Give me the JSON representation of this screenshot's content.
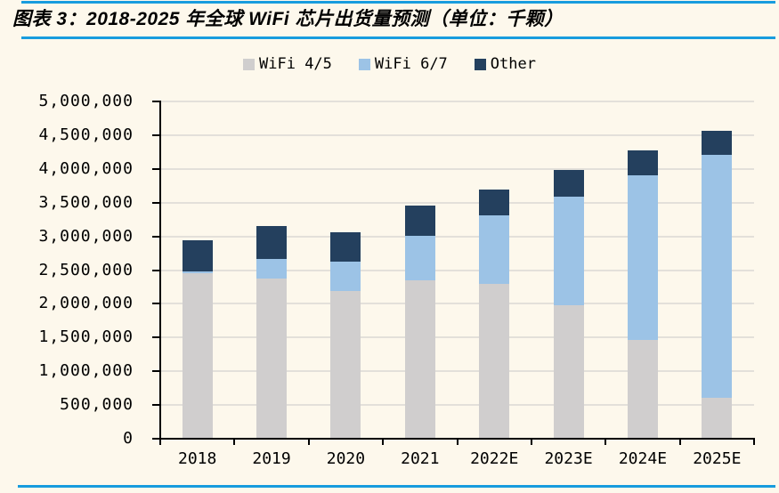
{
  "title": "图表 3：2018-2025 年全球 WiFi 芯片出货量预测（单位：千颗）",
  "colors": {
    "background": "#FDF8EC",
    "rule_blue": "#189CDE",
    "axis": "#000000",
    "gridline": "#E3E0DA",
    "title_text": "#000000"
  },
  "chart_data": {
    "type": "bar",
    "stacked": true,
    "title": "2018-2025 年全球 WiFi 芯片出货量预测（单位：千颗）",
    "categories": [
      "2018",
      "2019",
      "2020",
      "2021",
      "2022E",
      "2023E",
      "2024E",
      "2025E"
    ],
    "series": [
      {
        "name": "WiFi 4/5",
        "color": "#D0CECE",
        "values": [
          2450000,
          2370000,
          2190000,
          2350000,
          2300000,
          1980000,
          1460000,
          610000
        ]
      },
      {
        "name": "WiFi 6/7",
        "color": "#9CC3E6",
        "values": [
          30000,
          300000,
          430000,
          660000,
          1010000,
          1610000,
          2450000,
          3600000
        ]
      },
      {
        "name": "Other",
        "color": "#24405E",
        "values": [
          460000,
          480000,
          440000,
          440000,
          390000,
          400000,
          370000,
          350000
        ]
      }
    ],
    "totals": [
      2940000,
      3150000,
      3060000,
      3450000,
      3700000,
      3990000,
      4280000,
      4560000
    ],
    "xlabel": "",
    "ylabel": "",
    "ylim": [
      0,
      5000000
    ],
    "ytick_step": 500000,
    "ytick_labels": [
      "0",
      "500,000",
      "1,000,000",
      "1,500,000",
      "2,000,000",
      "2,500,000",
      "3,000,000",
      "3,500,000",
      "4,000,000",
      "4,500,000",
      "5,000,000"
    ],
    "grid": true,
    "legend_position": "top"
  }
}
